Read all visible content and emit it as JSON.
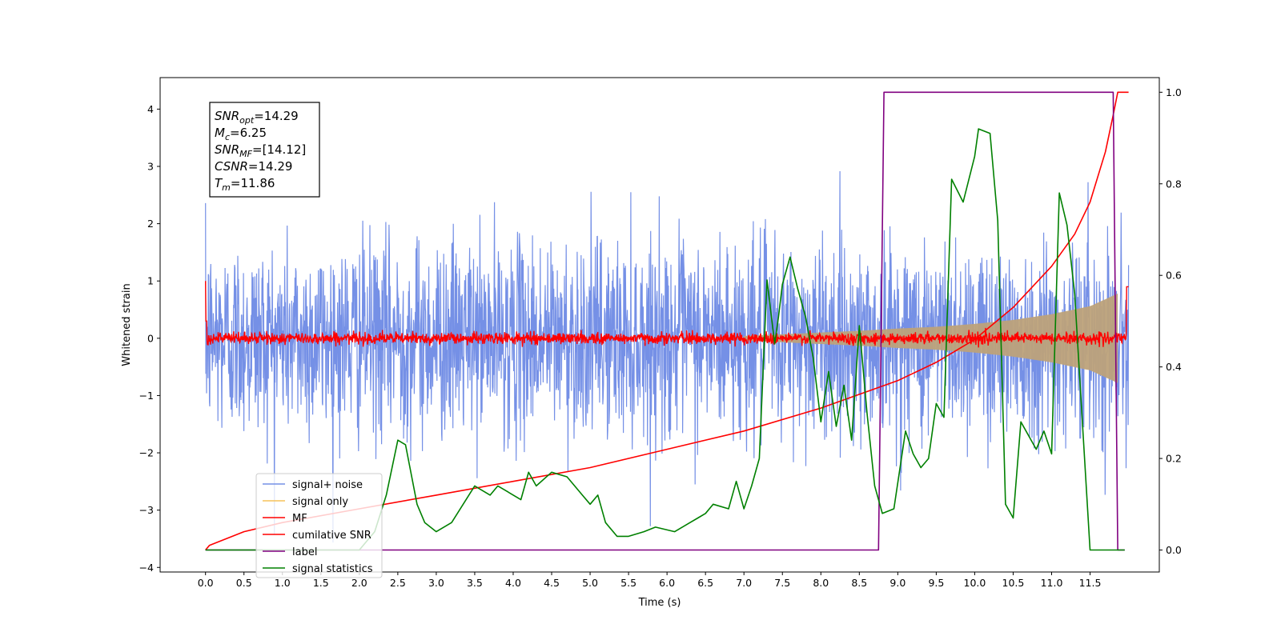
{
  "chart_data": {
    "type": "line",
    "xlabel": "Time (s)",
    "ylabel": "Whitened strain",
    "xlim": [
      -0.59,
      12.4
    ],
    "ylim": [
      -4.08,
      4.55
    ],
    "y2lim": [
      -0.048,
      1.032
    ],
    "x_ticks": [
      "0.0",
      "0.5",
      "1.0",
      "1.5",
      "2.0",
      "2.5",
      "3.0",
      "3.5",
      "4.0",
      "4.5",
      "5.0",
      "5.5",
      "6.0",
      "6.5",
      "7.0",
      "7.5",
      "8.0",
      "8.5",
      "9.0",
      "9.5",
      "10.0",
      "10.5",
      "11.0",
      "11.5"
    ],
    "y_ticks": [
      "4",
      "3",
      "2",
      "1",
      "0",
      "−1",
      "−2",
      "−3",
      "−4"
    ],
    "y2_ticks": [
      "1.0",
      "0.8",
      "0.6",
      "0.4",
      "0.2",
      "0.0"
    ],
    "grid": false,
    "legend_position": "lower-left",
    "stats_box": [
      {
        "sym": "SNR",
        "sub": "opt",
        "val": "=14.29"
      },
      {
        "sym": "M",
        "sub": "c",
        "val": "=6.25"
      },
      {
        "sym": "SNR",
        "sub": "MF",
        "val": "=[14.12]"
      },
      {
        "sym": "CSNR",
        "sub": "",
        "val": "=14.29"
      },
      {
        "sym": "T",
        "sub": "m",
        "val": "=11.86"
      }
    ],
    "series": [
      {
        "name": "signal+ noise",
        "color": "#7590e6",
        "axis": "left",
        "x_range": [
          0,
          12
        ],
        "noise_sigma": 0.85
      },
      {
        "name": "signal only",
        "color": "#f5c25a",
        "axis": "left",
        "x_range": [
          7.0,
          11.86
        ],
        "envelope": [
          [
            7.0,
            0.04
          ],
          [
            8.0,
            0.1
          ],
          [
            8.5,
            0.13
          ],
          [
            9.0,
            0.17
          ],
          [
            9.5,
            0.2
          ],
          [
            10.0,
            0.25
          ],
          [
            10.5,
            0.32
          ],
          [
            11.0,
            0.42
          ],
          [
            11.5,
            0.56
          ],
          [
            11.86,
            0.78
          ]
        ]
      },
      {
        "name": "MF",
        "color": "#ff0000",
        "axis": "left",
        "x_range": [
          0,
          12
        ],
        "noise_sigma": 0.05
      },
      {
        "name": "cumilative SNR",
        "color": "#ff0000",
        "axis": "right",
        "x": [
          0,
          0.05,
          0.5,
          1.0,
          2.0,
          3.0,
          4.0,
          5.0,
          6.0,
          7.0,
          8.0,
          9.0,
          9.5,
          10.0,
          10.5,
          11.0,
          11.3,
          11.5,
          11.7,
          11.8,
          11.86,
          12.0
        ],
        "y": [
          0.0,
          0.01,
          0.04,
          0.06,
          0.09,
          0.12,
          0.15,
          0.18,
          0.22,
          0.26,
          0.31,
          0.37,
          0.41,
          0.46,
          0.53,
          0.62,
          0.69,
          0.76,
          0.87,
          0.95,
          1.0,
          1.0
        ]
      },
      {
        "name": "label",
        "color": "#800080",
        "axis": "right",
        "x": [
          0,
          8.75,
          8.82,
          11.8,
          11.86,
          11.95
        ],
        "y": [
          0,
          0,
          1,
          1,
          0,
          0
        ]
      },
      {
        "name": "signal statistics",
        "color": "#008000",
        "axis": "right",
        "x": [
          0,
          1.5,
          2.0,
          2.2,
          2.35,
          2.5,
          2.6,
          2.75,
          2.85,
          3.0,
          3.2,
          3.5,
          3.7,
          3.8,
          3.9,
          4.1,
          4.2,
          4.3,
          4.5,
          4.7,
          4.9,
          5.0,
          5.1,
          5.2,
          5.35,
          5.5,
          5.7,
          5.85,
          6.1,
          6.3,
          6.4,
          6.5,
          6.6,
          6.8,
          6.9,
          7.0,
          7.1,
          7.2,
          7.3,
          7.4,
          7.45,
          7.5,
          7.6,
          7.7,
          7.8,
          7.9,
          8.0,
          8.1,
          8.2,
          8.3,
          8.4,
          8.5,
          8.6,
          8.7,
          8.8,
          8.95,
          9.1,
          9.2,
          9.3,
          9.4,
          9.5,
          9.6,
          9.7,
          9.85,
          10.0,
          10.05,
          10.2,
          10.3,
          10.4,
          10.5,
          10.6,
          10.8,
          10.9,
          11.0,
          11.1,
          11.2,
          11.3,
          11.5,
          11.6,
          11.7,
          11.8,
          11.86,
          11.95
        ],
        "y": [
          0.0,
          0.0,
          0.0,
          0.04,
          0.12,
          0.24,
          0.23,
          0.1,
          0.06,
          0.04,
          0.06,
          0.14,
          0.12,
          0.14,
          0.13,
          0.11,
          0.17,
          0.14,
          0.17,
          0.16,
          0.12,
          0.1,
          0.12,
          0.06,
          0.03,
          0.03,
          0.04,
          0.05,
          0.04,
          0.06,
          0.07,
          0.08,
          0.1,
          0.09,
          0.15,
          0.09,
          0.14,
          0.2,
          0.59,
          0.45,
          0.51,
          0.58,
          0.64,
          0.57,
          0.51,
          0.42,
          0.28,
          0.39,
          0.27,
          0.36,
          0.24,
          0.49,
          0.3,
          0.14,
          0.08,
          0.09,
          0.26,
          0.21,
          0.18,
          0.2,
          0.32,
          0.29,
          0.81,
          0.76,
          0.86,
          0.92,
          0.91,
          0.72,
          0.1,
          0.07,
          0.28,
          0.22,
          0.26,
          0.21,
          0.78,
          0.71,
          0.56,
          0.0,
          0.0,
          0.0,
          0.0,
          0.0,
          0.0
        ]
      }
    ]
  }
}
